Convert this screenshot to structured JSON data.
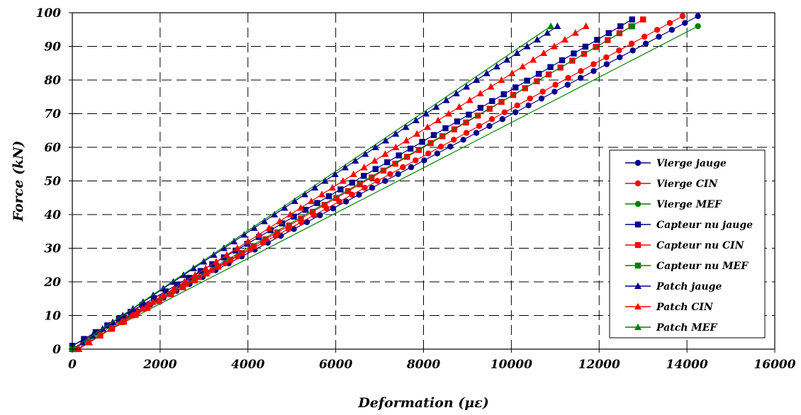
{
  "chart_data": {
    "type": "line",
    "xlabel": "Deformation (με)",
    "ylabel": "Force (kN)",
    "xlim": [
      0,
      16000
    ],
    "ylim": [
      0,
      100
    ],
    "xticks": [
      0,
      2000,
      4000,
      6000,
      8000,
      10000,
      12000,
      14000,
      16000
    ],
    "yticks": [
      0,
      10,
      20,
      30,
      40,
      50,
      60,
      70,
      80,
      90,
      100
    ],
    "grid": "dashed",
    "legend_position": "right",
    "colors": {
      "blue": "#00008b",
      "red": "#ff0000",
      "green": "#008000"
    },
    "series": [
      {
        "name": "Vierge jauge",
        "color": "#00008b",
        "marker": "circle",
        "x_end": 14250,
        "y_end": 99,
        "points": [
          [
            0,
            1
          ],
          [
            14250,
            99
          ]
        ]
      },
      {
        "name": "Vierge CIN",
        "color": "#ff0000",
        "marker": "circle",
        "x_end": 13900,
        "y_end": 99,
        "points": [
          [
            0,
            1
          ],
          [
            13900,
            99
          ]
        ]
      },
      {
        "name": "Vierge MEF",
        "color": "#008000",
        "marker": "circle",
        "x_end": 14250,
        "y_end": 96,
        "points": [
          [
            0,
            0
          ],
          [
            14250,
            96
          ]
        ]
      },
      {
        "name": "Capteur nu jauge",
        "color": "#00008b",
        "marker": "square",
        "x_end": 12750,
        "y_end": 98,
        "points": [
          [
            0,
            1
          ],
          [
            12750,
            98
          ]
        ]
      },
      {
        "name": "Capteur nu CIN",
        "color": "#ff0000",
        "marker": "square",
        "x_end": 13000,
        "y_end": 98,
        "points": [
          [
            100,
            0
          ],
          [
            13000,
            98
          ]
        ]
      },
      {
        "name": "Capteur nu MEF",
        "color": "#008000",
        "marker": "square",
        "x_end": 12750,
        "y_end": 96,
        "points": [
          [
            0,
            0
          ],
          [
            12750,
            96
          ]
        ]
      },
      {
        "name": "Patch jauge",
        "color": "#00008b",
        "marker": "triangle",
        "x_end": 11050,
        "y_end": 96,
        "points": [
          [
            0,
            0
          ],
          [
            11050,
            96
          ]
        ]
      },
      {
        "name": "Patch CIN",
        "color": "#ff0000",
        "marker": "triangle",
        "x_end": 11700,
        "y_end": 96,
        "points": [
          [
            150,
            0
          ],
          [
            11700,
            96
          ]
        ]
      },
      {
        "name": "Patch MEF",
        "color": "#008000",
        "marker": "triangle",
        "x_end": 10900,
        "y_end": 96,
        "points": [
          [
            0,
            0
          ],
          [
            10900,
            96
          ]
        ]
      }
    ]
  }
}
